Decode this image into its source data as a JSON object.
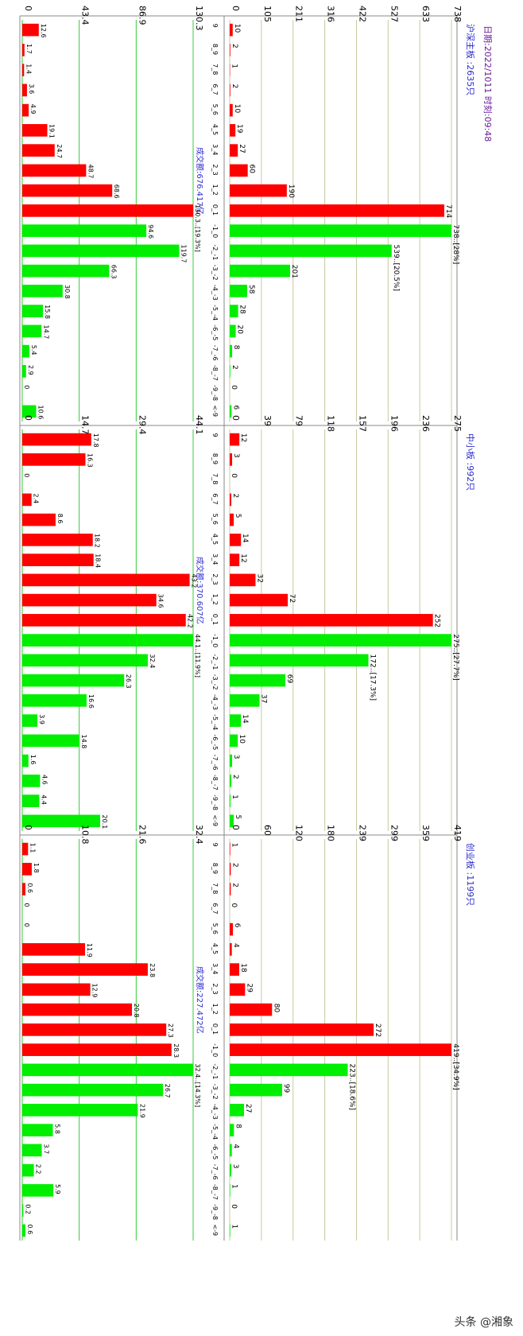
{
  "header": {
    "date_line": "日期:2022/1011  时刻:09:48",
    "watermark": "头条 @湘象"
  },
  "colors": {
    "up": "#ff0000",
    "down": "#00ee00",
    "grid": "#c8c8a0",
    "greenGrid": "#33cc33"
  },
  "chart_data": [
    {
      "type": "bar",
      "board": "沪深主板",
      "label": "沪深主板 :2635只",
      "title": "沪深主板 :2635只",
      "categories": [
        "9",
        "8_9",
        "7_8",
        "6_7",
        "5_6",
        "4_5",
        "3_4",
        "2_3",
        "1_2",
        "0_1",
        "-1_0",
        "-2_-1",
        "-3_-2",
        "-4_-3",
        "-5_-4",
        "-6_-5",
        "-7_-6",
        "-8_-7",
        "-9_-8",
        "<-9"
      ],
      "count_ticks": [
        "0",
        "105",
        "211",
        "316",
        "422",
        "527",
        "633",
        "738"
      ],
      "count_max": 738,
      "counts": [
        10,
        2,
        1,
        2,
        10,
        19,
        27,
        60,
        190,
        714,
        738,
        539,
        201,
        58,
        28,
        20,
        8,
        2,
        0,
        6
      ],
      "count_labels": [
        "10",
        "2",
        "1",
        "2",
        "10",
        "19",
        "27",
        "60",
        "190",
        "714",
        "738..[28%]",
        "539..[20.5%]",
        "201",
        "58",
        "28",
        "20",
        "8",
        "2",
        "0",
        "6"
      ],
      "turnover_label": "成交额:676.417亿",
      "amount_ticks": [
        "0",
        "43.4",
        "86.9",
        "130.3"
      ],
      "amount_max": 130.3,
      "amounts": [
        12.6,
        1.7,
        1.4,
        3.6,
        4.9,
        19.1,
        24.7,
        48.7,
        68.6,
        130.3,
        94.6,
        119.7,
        66.3,
        30.8,
        15.8,
        14.7,
        5.4,
        2.9,
        0,
        10.6
      ],
      "amount_labels": [
        "12.6",
        "1.7",
        "1.4",
        "3.6",
        "4.9",
        "19.1",
        "24.7",
        "48.7",
        "68.6",
        "130.3..[19.3%]",
        "94.6",
        "119.7",
        "66.3",
        "30.8",
        "15.8",
        "14.7",
        "5.4",
        "2.9",
        "0",
        "10.6"
      ],
      "colors": [
        "up",
        "up",
        "up",
        "up",
        "up",
        "up",
        "up",
        "up",
        "up",
        "up",
        "down",
        "down",
        "down",
        "down",
        "down",
        "down",
        "down",
        "down",
        "down",
        "down"
      ]
    },
    {
      "type": "bar",
      "board": "中小板",
      "label": "中小板 :992只",
      "title": "中小板 :992只",
      "categories": [
        "9",
        "8_9",
        "7_8",
        "6_7",
        "5_6",
        "4_5",
        "3_4",
        "2_3",
        "1_2",
        "0_1",
        "-1_0",
        "-2_-1",
        "-3_-2",
        "-4_-3",
        "-5_-4",
        "-6_-5",
        "-7_-6",
        "-8_-7",
        "-9_-8",
        "<-9"
      ],
      "count_ticks": [
        "0",
        "39",
        "79",
        "118",
        "157",
        "196",
        "236",
        "275"
      ],
      "count_max": 275,
      "counts": [
        12,
        3,
        0,
        2,
        5,
        14,
        12,
        32,
        72,
        252,
        275,
        172,
        69,
        37,
        14,
        10,
        3,
        2,
        1,
        5
      ],
      "count_labels": [
        "12",
        "3",
        "0",
        "2",
        "5",
        "14",
        "12",
        "32",
        "72",
        "252",
        "275..[27.7%]",
        "172..[17.3%]",
        "69",
        "37",
        "14",
        "10",
        "3",
        "2",
        "1",
        "5"
      ],
      "turnover_label": "成交额:370.607亿",
      "amount_ticks": [
        "0",
        "14.7",
        "29.4",
        "44.1"
      ],
      "amount_max": 44.1,
      "amounts": [
        17.8,
        16.3,
        0,
        2.4,
        8.6,
        18.2,
        18.4,
        43.2,
        34.6,
        42.2,
        44.1,
        32.4,
        26.3,
        16.6,
        3.9,
        14.8,
        1.6,
        4.6,
        4.4,
        20.1
      ],
      "amount_labels": [
        "17.8",
        "16.3",
        "0",
        "2.4",
        "8.6",
        "18.2",
        "18.4",
        "43.2",
        "34.6",
        "42.2",
        "44.1..[11.9%]",
        "32.4",
        "26.3",
        "16.6",
        "3.9",
        "14.8",
        "1.6",
        "4.6",
        "4.4",
        "20.1"
      ],
      "colors": [
        "up",
        "up",
        "up",
        "up",
        "up",
        "up",
        "up",
        "up",
        "up",
        "up",
        "down",
        "down",
        "down",
        "down",
        "down",
        "down",
        "down",
        "down",
        "down",
        "down"
      ]
    },
    {
      "type": "bar",
      "board": "创业板",
      "label": "创业板 :1199只",
      "title": "创业板 :1199只",
      "categories": [
        "9",
        "8_9",
        "7_8",
        "6_7",
        "5_6",
        "4_5",
        "3_4",
        "2_3",
        "1_2",
        "0_1",
        "-1_0",
        "-2_-1",
        "-3_-2",
        "-4_-3",
        "-5_-4",
        "-6_-5",
        "-7_-6",
        "-8_-7",
        "-9_-8",
        "<-9"
      ],
      "count_ticks": [
        "0",
        "60",
        "120",
        "180",
        "239",
        "299",
        "359",
        "419"
      ],
      "count_max": 419,
      "counts": [
        1,
        2,
        2,
        0,
        6,
        4,
        18,
        29,
        80,
        272,
        419,
        223,
        99,
        27,
        8,
        4,
        3,
        1,
        0,
        1
      ],
      "count_labels": [
        "1",
        "2",
        "2",
        "0",
        "6",
        "4",
        "18",
        "29",
        "80",
        "272",
        "419..[34.9%]",
        "223..[18.6%]",
        "99",
        "27",
        "8",
        "4",
        "3",
        "1",
        "0",
        "1"
      ],
      "turnover_label": "成交额:227.472亿",
      "amount_ticks": [
        "0",
        "10.8",
        "21.6",
        "32.4"
      ],
      "amount_max": 32.4,
      "amounts": [
        1.1,
        1.8,
        0.6,
        0,
        0,
        11.9,
        23.8,
        12.9,
        20.8,
        27.3,
        28.3,
        32.4,
        26.7,
        21.9,
        5.8,
        3.7,
        2.2,
        5.9,
        0.2,
        0.6
      ],
      "amount_labels": [
        "1.1",
        "1.8",
        "0.6",
        "0",
        "0",
        "11.9",
        "23.8",
        "12.9",
        "20.8",
        "27.3",
        "28.3",
        "32.4..[14.3%]",
        "26.7",
        "21.9",
        "5.8",
        "3.7",
        "2.2",
        "5.9",
        "0.2",
        "0.6"
      ],
      "colors": [
        "up",
        "up",
        "up",
        "up",
        "up",
        "up",
        "up",
        "up",
        "up",
        "up",
        "up",
        "down",
        "down",
        "down",
        "down",
        "down",
        "down",
        "down",
        "down",
        "down"
      ]
    }
  ]
}
